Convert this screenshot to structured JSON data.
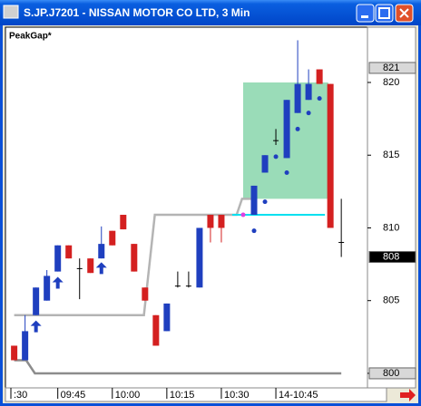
{
  "chart_data": {
    "type": "candlestick",
    "title": "S.JP.J7201 - NISSAN MOTOR CO LTD, 3 Min",
    "indicator_label": "PeakGap*",
    "up_color": "#1f3fbf",
    "down_color": "#d42020",
    "ylim": [
      799,
      823.8
    ],
    "yticks": [
      800,
      805,
      810,
      815,
      820
    ],
    "xlim": [
      -0.8,
      32.4
    ],
    "xticks": [
      {
        "value": -0.3,
        "label": ":30"
      },
      {
        "value": 4,
        "label": "09:45"
      },
      {
        "value": 9,
        "label": "10:00"
      },
      {
        "value": 14,
        "label": "10:15"
      },
      {
        "value": 19,
        "label": "10:30"
      },
      {
        "value": 24,
        "label": "14-10:45"
      }
    ],
    "candles": [
      {
        "open": 801.9,
        "high": 801.9,
        "low": 800.9,
        "close": 800.9
      },
      {
        "open": 800.9,
        "high": 804,
        "low": 800.9,
        "close": 802.9
      },
      {
        "open": 804,
        "high": 805.9,
        "low": 804,
        "close": 805.9
      },
      {
        "open": 805,
        "high": 807.1,
        "low": 805,
        "close": 806.7
      },
      {
        "open": 807,
        "high": 808.8,
        "low": 807,
        "close": 808.8
      },
      {
        "open": 808.8,
        "high": 808.8,
        "low": 807.9,
        "close": 807.9
      },
      {
        "open": 807.2,
        "high": 807.9,
        "low": 805.1,
        "close": 807.2
      },
      {
        "open": 807.9,
        "high": 807.9,
        "low": 806.9,
        "close": 806.9
      },
      {
        "open": 807.9,
        "high": 810.1,
        "low": 807.9,
        "close": 808.9
      },
      {
        "open": 809.8,
        "high": 809.8,
        "low": 808.8,
        "close": 808.8
      },
      {
        "open": 810.9,
        "high": 810.9,
        "low": 809.9,
        "close": 809.9
      },
      {
        "open": 808.9,
        "high": 808.9,
        "low": 807,
        "close": 807
      },
      {
        "open": 805.9,
        "high": 805.9,
        "low": 805,
        "close": 805
      },
      {
        "open": 804,
        "high": 804,
        "low": 801.9,
        "close": 801.9
      },
      {
        "open": 802.9,
        "high": 804.8,
        "low": 802.9,
        "close": 804.8
      },
      {
        "open": 806,
        "high": 807,
        "low": 805.9,
        "close": 806
      },
      {
        "open": 806,
        "high": 807,
        "low": 805.9,
        "close": 806
      },
      {
        "open": 805.9,
        "high": 810,
        "low": 805.9,
        "close": 810
      },
      {
        "open": 810.9,
        "high": 810.9,
        "low": 809,
        "close": 810
      },
      {
        "open": 810.9,
        "high": 810.9,
        "low": 809,
        "close": 810
      },
      null,
      null,
      {
        "open": 810.9,
        "high": 812.9,
        "low": 810.9,
        "close": 812.9
      },
      {
        "open": 813.8,
        "high": 815,
        "low": 813.8,
        "close": 815
      },
      {
        "open": 816,
        "high": 816.8,
        "low": 815.7,
        "close": 816
      },
      {
        "open": 814.8,
        "high": 818.8,
        "low": 814.8,
        "close": 818.8
      },
      {
        "open": 817.9,
        "high": 822.9,
        "low": 817.9,
        "close": 819.9
      },
      {
        "open": 818.8,
        "high": 820.9,
        "low": 818.8,
        "close": 819.9
      },
      {
        "open": 820.9,
        "high": 820.9,
        "low": 819.9,
        "close": 819.9
      },
      {
        "open": 819.9,
        "high": 819.9,
        "low": 810,
        "close": 810
      },
      {
        "open": 809,
        "high": 812,
        "low": 808,
        "close": 809
      }
    ],
    "lines": [
      {
        "color": "#b4b4b4",
        "x": [
          0,
          11.9,
          12.9,
          20.4,
          20.9,
          21.9
        ],
        "values": [
          804,
          804,
          810.9,
          810.9,
          812,
          812
        ]
      },
      {
        "color": "#8c8c8c",
        "x": [
          0,
          1.1,
          1.9,
          30
        ],
        "values": [
          800.9,
          800.9,
          800,
          800
        ]
      },
      {
        "color": "#00e0f0",
        "x": [
          20,
          28.5
        ],
        "values": [
          810.9,
          810.9
        ]
      }
    ],
    "zone": {
      "color": "#8fd8b0",
      "x": [
        21,
        28.8
      ],
      "values": [
        812,
        820
      ]
    },
    "dots": {
      "color": "#1f3fbf",
      "x": [
        22,
        23,
        24,
        25,
        26,
        27,
        28
      ],
      "values": [
        809.8,
        811.8,
        814.9,
        813.8,
        816.8,
        817.9,
        818.9
      ]
    },
    "cross_dot": {
      "color": "#e040e0",
      "x": 21,
      "value": 810.9
    },
    "arrows": {
      "color": "#1f3fbf",
      "x": [
        2,
        4,
        8
      ],
      "values": [
        803.2,
        806.2,
        807.2
      ]
    },
    "price_markers": [
      {
        "value": 821,
        "style": "gray"
      },
      {
        "value": 808,
        "style": "black"
      },
      {
        "value": 800,
        "style": "gray"
      }
    ]
  }
}
